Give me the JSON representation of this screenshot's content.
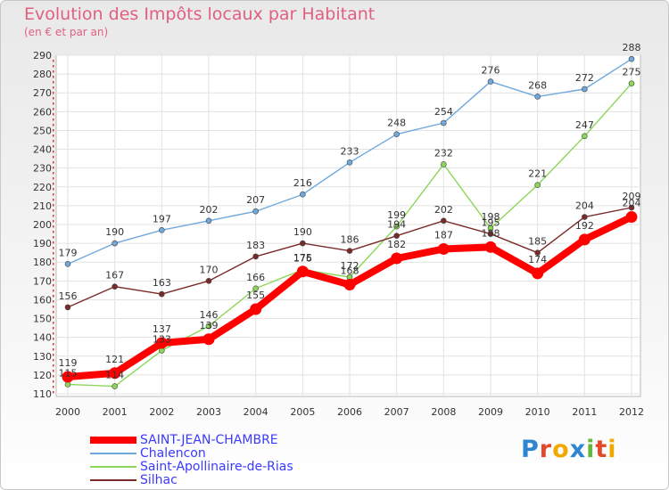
{
  "header": {
    "title": "Evolution des Impôts locaux par Habitant",
    "subtitle": "(en € et par an)"
  },
  "chart_data": {
    "type": "line",
    "x": [
      "2000",
      "2001",
      "2002",
      "2003",
      "2004",
      "2005",
      "2006",
      "2007",
      "2008",
      "2009",
      "2010",
      "2011",
      "2012"
    ],
    "ylim": [
      110,
      290
    ],
    "yticks": [
      110,
      120,
      130,
      140,
      150,
      160,
      170,
      180,
      190,
      200,
      210,
      220,
      230,
      240,
      250,
      260,
      270,
      280,
      290
    ],
    "grid": true,
    "legend": "bottom-left",
    "series": [
      {
        "name": "SAINT-JEAN-CHAMBRE",
        "color": "#ff0000",
        "values": [
          119,
          121,
          137,
          139,
          155,
          175,
          168,
          182,
          187,
          188,
          174,
          192,
          204
        ]
      },
      {
        "name": "Chalencon",
        "color": "#6fa8dc",
        "values": [
          179,
          190,
          197,
          202,
          207,
          216,
          233,
          248,
          254,
          276,
          268,
          272,
          288
        ]
      },
      {
        "name": "Saint-Apollinaire-de-Rias",
        "color": "#8cd65a",
        "values": [
          115,
          114,
          133,
          146,
          166,
          176,
          172,
          199,
          232,
          198,
          221,
          247,
          275
        ]
      },
      {
        "name": "Silhac",
        "color": "#7a2a2a",
        "values": [
          156,
          167,
          163,
          170,
          183,
          190,
          186,
          194,
          202,
          195,
          185,
          204,
          209
        ]
      }
    ]
  },
  "logo": {
    "letters": [
      "P",
      "r",
      "o",
      "x",
      "i",
      "t",
      "i"
    ],
    "colors": [
      "#2f86d0",
      "#e2492a",
      "#f0a900",
      "#2f86d0",
      "#66b83d",
      "#e2492a",
      "#f0a900"
    ]
  }
}
